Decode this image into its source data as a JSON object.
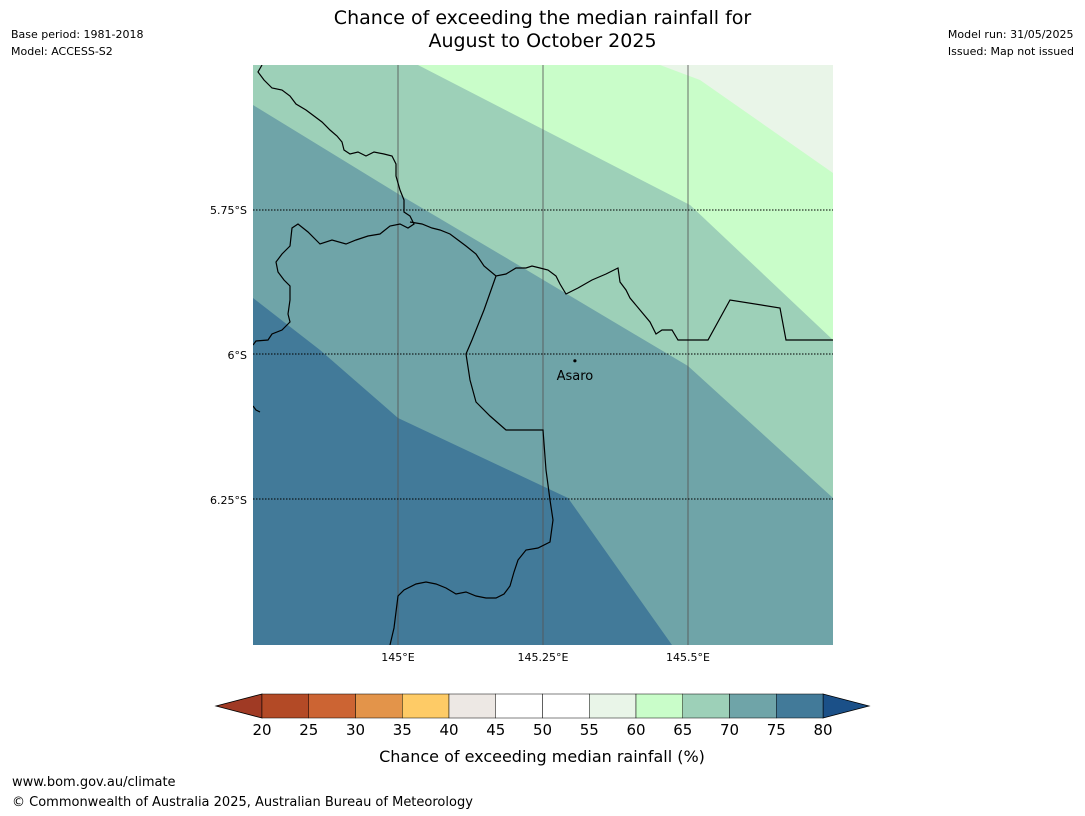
{
  "title": {
    "line1": "Chance of exceeding the median rainfall for",
    "line2": "August to October 2025"
  },
  "meta_left": {
    "base_period": "Base period: 1981-2018",
    "model": "Model: ACCESS-S2"
  },
  "meta_right": {
    "model_run": "Model run: 31/05/2025",
    "issued": "Issued: Map not issued"
  },
  "map": {
    "lon_range": [
      144.75,
      145.75
    ],
    "lat_range": [
      -5.5,
      -6.5
    ],
    "lon_ticks": [
      {
        "value": 145.0,
        "label": "145°E"
      },
      {
        "value": 145.25,
        "label": "145.25°E"
      },
      {
        "value": 145.5,
        "label": "145.5°E"
      }
    ],
    "lat_ticks": [
      {
        "value": -5.75,
        "label": "5.75°S"
      },
      {
        "value": -6.0,
        "label": "6°S"
      },
      {
        "value": -6.25,
        "label": "6.25°S"
      }
    ],
    "place": {
      "name": "Asaro",
      "lon": 145.305,
      "lat": -6.01
    }
  },
  "colorbar": {
    "label": "Chance of exceeding median rainfall (%)",
    "ticks": [
      "20",
      "25",
      "30",
      "35",
      "40",
      "45",
      "50",
      "55",
      "60",
      "65",
      "70",
      "75",
      "80"
    ],
    "colors": [
      "#b34a26",
      "#cc6433",
      "#e3944a",
      "#fecb66",
      "#ede8e4",
      "#ffffff",
      "#ffffff",
      "#e9f5e8",
      "#c9fdc9",
      "#9dd0b8",
      "#6fa4a8",
      "#427a99"
    ],
    "under_color": "#a03a24",
    "over_color": "#1b5088"
  },
  "contour_colors": {
    "c55_60": "#e9f5e8",
    "c60_65": "#c9fdc9",
    "c65_70": "#9dd0b8",
    "c70_75": "#6fa4a8",
    "c75_80": "#427a99"
  },
  "footer": {
    "url": "www.bom.gov.au/climate",
    "copyright": "© Commonwealth of Australia 2025, Australian Bureau of Meteorology"
  }
}
